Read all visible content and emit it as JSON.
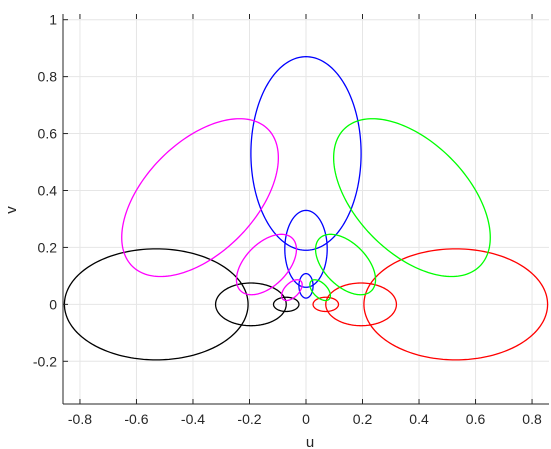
{
  "chart_data": {
    "type": "line",
    "title": "",
    "xlabel": "u",
    "ylabel": "v",
    "xlim": [
      -0.86,
      0.86
    ],
    "ylim": [
      -0.35,
      1.02
    ],
    "xticks": [
      -0.8,
      -0.6,
      -0.4,
      -0.2,
      0,
      0.2,
      0.4,
      0.6,
      0.8
    ],
    "xtick_labels": [
      "-0.8",
      "-0.6",
      "-0.4",
      "-0.2",
      "0",
      "0.2",
      "0.4",
      "0.6",
      "0.8"
    ],
    "yticks": [
      -0.2,
      0,
      0.2,
      0.4,
      0.6,
      0.8,
      1
    ],
    "ytick_labels": [
      "-0.2",
      "0",
      "0.2",
      "0.4",
      "0.6",
      "0.8",
      "1"
    ],
    "grid": true,
    "legend": "none",
    "colors": {
      "black": "#000000",
      "red": "#ff0000",
      "blue": "#0000ff",
      "magenta": "#ff00ff",
      "green": "#00ff00",
      "axis": "#262626",
      "grid": "#e6e6e6"
    },
    "series": [
      {
        "color": "black",
        "ellipses": [
          {
            "cx": -0.53,
            "cy": 0.0,
            "rx": 0.325,
            "ry": 0.195,
            "angle": 0
          },
          {
            "cx": -0.195,
            "cy": 0.0,
            "rx": 0.125,
            "ry": 0.075,
            "angle": 0
          },
          {
            "cx": -0.07,
            "cy": 0.0,
            "rx": 0.045,
            "ry": 0.025,
            "angle": 0
          }
        ]
      },
      {
        "color": "red",
        "ellipses": [
          {
            "cx": 0.53,
            "cy": 0.0,
            "rx": 0.325,
            "ry": 0.195,
            "angle": 0
          },
          {
            "cx": 0.195,
            "cy": 0.0,
            "rx": 0.125,
            "ry": 0.075,
            "angle": 0
          },
          {
            "cx": 0.07,
            "cy": 0.0,
            "rx": 0.045,
            "ry": 0.025,
            "angle": 0
          }
        ]
      },
      {
        "color": "blue",
        "ellipses": [
          {
            "cx": 0.0,
            "cy": 0.53,
            "rx": 0.195,
            "ry": 0.34,
            "angle": 0
          },
          {
            "cx": 0.0,
            "cy": 0.195,
            "rx": 0.075,
            "ry": 0.135,
            "angle": 0
          },
          {
            "cx": 0.0,
            "cy": 0.065,
            "rx": 0.025,
            "ry": 0.043,
            "angle": 0
          }
        ]
      },
      {
        "color": "magenta",
        "ellipses": [
          {
            "cx": -0.375,
            "cy": 0.375,
            "rx": 0.34,
            "ry": 0.195,
            "angle": 45
          },
          {
            "cx": -0.14,
            "cy": 0.14,
            "rx": 0.13,
            "ry": 0.075,
            "angle": 45
          },
          {
            "cx": -0.05,
            "cy": 0.05,
            "rx": 0.045,
            "ry": 0.025,
            "angle": 45
          }
        ]
      },
      {
        "color": "green",
        "ellipses": [
          {
            "cx": 0.375,
            "cy": 0.375,
            "rx": 0.34,
            "ry": 0.195,
            "angle": -45
          },
          {
            "cx": 0.14,
            "cy": 0.14,
            "rx": 0.13,
            "ry": 0.075,
            "angle": -45
          },
          {
            "cx": 0.05,
            "cy": 0.05,
            "rx": 0.045,
            "ry": 0.025,
            "angle": -45
          }
        ]
      }
    ]
  }
}
